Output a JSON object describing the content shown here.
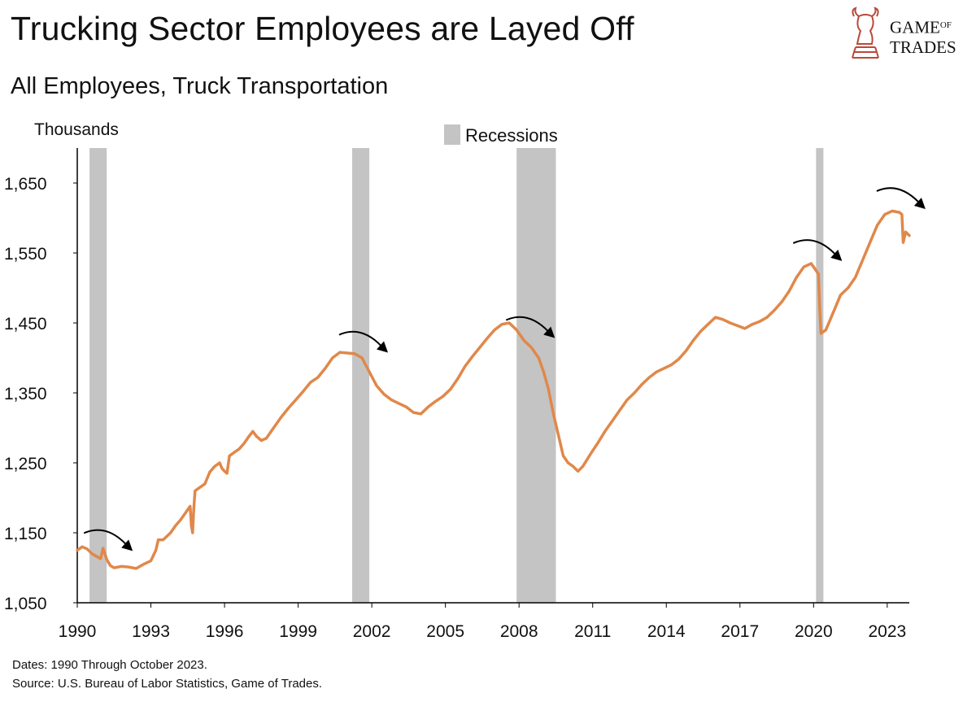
{
  "header": {
    "title": "Trucking Sector Employees are Layed Off",
    "subtitle": "All Employees, Truck Transportation"
  },
  "logo": {
    "line1": "GAME",
    "of": "OF",
    "line2": "TRADES",
    "icon": "bull-knight-chess-icon"
  },
  "footer": {
    "dates": "Dates: 1990 Through October 2023.",
    "source": "Source: U.S. Bureau of Labor Statistics, Game of Trades."
  },
  "colors": {
    "line": "#E0884A",
    "recession": "#C4C4C4",
    "arrow": "#000000",
    "logo": "#B84A3A"
  },
  "chart_data": {
    "type": "line",
    "title": "Trucking Sector Employees are Layed Off",
    "subtitle": "All Employees, Truck Transportation",
    "ylabel": "Thousands",
    "xlabel": "",
    "xlim": [
      1990.0,
      2023.9
    ],
    "ylim": [
      1050,
      1650
    ],
    "yticks": [
      1050,
      1150,
      1250,
      1350,
      1450,
      1550,
      1650
    ],
    "ytick_labels": [
      "1,050",
      "1,150",
      "1,250",
      "1,350",
      "1,450",
      "1,550",
      "1,650"
    ],
    "xticks": [
      1990,
      1993,
      1996,
      1999,
      2002,
      2005,
      2008,
      2011,
      2014,
      2017,
      2020,
      2023
    ],
    "xtick_labels": [
      "1990",
      "1993",
      "1996",
      "1999",
      "2002",
      "2005",
      "2008",
      "2011",
      "2014",
      "2017",
      "2020",
      "2023"
    ],
    "legend": {
      "label": "Recessions",
      "placement": "top-center"
    },
    "recessions": [
      [
        1990.5,
        1991.2
      ],
      [
        2001.2,
        2001.9
      ],
      [
        2007.9,
        2009.5
      ],
      [
        2020.1,
        2020.4
      ]
    ],
    "annotations": [
      {
        "type": "downturn-arrow",
        "x": 1991.0
      },
      {
        "type": "downturn-arrow",
        "x": 2001.4
      },
      {
        "type": "downturn-arrow",
        "x": 2008.2
      },
      {
        "type": "downturn-arrow",
        "x": 2019.9
      },
      {
        "type": "downturn-arrow",
        "x": 2023.3
      }
    ],
    "series": [
      {
        "values": [
          [
            1990.0,
            1125
          ],
          [
            1990.2,
            1130
          ],
          [
            1990.4,
            1127
          ],
          [
            1990.6,
            1120
          ],
          [
            1990.8,
            1116
          ],
          [
            1990.95,
            1113
          ],
          [
            1991.05,
            1128
          ],
          [
            1991.2,
            1112
          ],
          [
            1991.35,
            1103
          ],
          [
            1991.5,
            1100
          ],
          [
            1991.8,
            1102
          ],
          [
            1992.1,
            1101
          ],
          [
            1992.4,
            1099
          ],
          [
            1992.7,
            1105
          ],
          [
            1993.0,
            1110
          ],
          [
            1993.2,
            1125
          ],
          [
            1993.3,
            1140
          ],
          [
            1993.5,
            1140
          ],
          [
            1993.8,
            1150
          ],
          [
            1994.0,
            1160
          ],
          [
            1994.2,
            1168
          ],
          [
            1994.4,
            1178
          ],
          [
            1994.6,
            1188
          ],
          [
            1994.65,
            1160
          ],
          [
            1994.7,
            1150
          ],
          [
            1994.75,
            1185
          ],
          [
            1994.8,
            1210
          ],
          [
            1995.0,
            1215
          ],
          [
            1995.2,
            1220
          ],
          [
            1995.4,
            1237
          ],
          [
            1995.6,
            1245
          ],
          [
            1995.8,
            1250
          ],
          [
            1995.9,
            1242
          ],
          [
            1996.0,
            1238
          ],
          [
            1996.1,
            1235
          ],
          [
            1996.2,
            1260
          ],
          [
            1996.4,
            1265
          ],
          [
            1996.6,
            1270
          ],
          [
            1996.8,
            1278
          ],
          [
            1997.0,
            1288
          ],
          [
            1997.15,
            1295
          ],
          [
            1997.3,
            1288
          ],
          [
            1997.5,
            1282
          ],
          [
            1997.7,
            1285
          ],
          [
            1998.0,
            1300
          ],
          [
            1998.3,
            1315
          ],
          [
            1998.6,
            1328
          ],
          [
            1998.9,
            1340
          ],
          [
            1999.2,
            1352
          ],
          [
            1999.5,
            1365
          ],
          [
            1999.8,
            1372
          ],
          [
            2000.1,
            1385
          ],
          [
            2000.4,
            1400
          ],
          [
            2000.7,
            1408
          ],
          [
            2001.0,
            1407
          ],
          [
            2001.3,
            1406
          ],
          [
            2001.6,
            1400
          ],
          [
            2001.9,
            1380
          ],
          [
            2002.2,
            1360
          ],
          [
            2002.5,
            1348
          ],
          [
            2002.8,
            1340
          ],
          [
            2003.1,
            1335
          ],
          [
            2003.4,
            1330
          ],
          [
            2003.7,
            1322
          ],
          [
            2004.0,
            1320
          ],
          [
            2004.3,
            1330
          ],
          [
            2004.6,
            1338
          ],
          [
            2004.9,
            1345
          ],
          [
            2005.2,
            1355
          ],
          [
            2005.5,
            1370
          ],
          [
            2005.8,
            1388
          ],
          [
            2006.1,
            1402
          ],
          [
            2006.4,
            1415
          ],
          [
            2006.7,
            1428
          ],
          [
            2007.0,
            1440
          ],
          [
            2007.3,
            1448
          ],
          [
            2007.6,
            1450
          ],
          [
            2007.9,
            1440
          ],
          [
            2008.2,
            1425
          ],
          [
            2008.5,
            1415
          ],
          [
            2008.8,
            1400
          ],
          [
            2009.0,
            1380
          ],
          [
            2009.2,
            1355
          ],
          [
            2009.4,
            1320
          ],
          [
            2009.6,
            1290
          ],
          [
            2009.8,
            1260
          ],
          [
            2010.0,
            1250
          ],
          [
            2010.2,
            1245
          ],
          [
            2010.4,
            1238
          ],
          [
            2010.6,
            1245
          ],
          [
            2010.9,
            1262
          ],
          [
            2011.2,
            1278
          ],
          [
            2011.5,
            1295
          ],
          [
            2011.8,
            1310
          ],
          [
            2012.1,
            1325
          ],
          [
            2012.4,
            1340
          ],
          [
            2012.7,
            1350
          ],
          [
            2013.0,
            1362
          ],
          [
            2013.3,
            1372
          ],
          [
            2013.6,
            1380
          ],
          [
            2013.9,
            1385
          ],
          [
            2014.2,
            1390
          ],
          [
            2014.5,
            1398
          ],
          [
            2014.8,
            1410
          ],
          [
            2015.1,
            1425
          ],
          [
            2015.4,
            1438
          ],
          [
            2015.7,
            1448
          ],
          [
            2016.0,
            1458
          ],
          [
            2016.3,
            1455
          ],
          [
            2016.6,
            1450
          ],
          [
            2016.9,
            1446
          ],
          [
            2017.2,
            1442
          ],
          [
            2017.5,
            1448
          ],
          [
            2017.8,
            1452
          ],
          [
            2018.1,
            1458
          ],
          [
            2018.4,
            1468
          ],
          [
            2018.7,
            1480
          ],
          [
            2019.0,
            1495
          ],
          [
            2019.3,
            1515
          ],
          [
            2019.6,
            1530
          ],
          [
            2019.9,
            1535
          ],
          [
            2020.1,
            1525
          ],
          [
            2020.2,
            1520
          ],
          [
            2020.25,
            1470
          ],
          [
            2020.3,
            1435
          ],
          [
            2020.5,
            1440
          ],
          [
            2020.8,
            1465
          ],
          [
            2021.1,
            1490
          ],
          [
            2021.4,
            1500
          ],
          [
            2021.7,
            1515
          ],
          [
            2022.0,
            1540
          ],
          [
            2022.3,
            1565
          ],
          [
            2022.6,
            1590
          ],
          [
            2022.9,
            1605
          ],
          [
            2023.2,
            1610
          ],
          [
            2023.5,
            1608
          ],
          [
            2023.6,
            1605
          ],
          [
            2023.65,
            1565
          ],
          [
            2023.75,
            1580
          ],
          [
            2023.9,
            1575
          ]
        ]
      }
    ]
  }
}
